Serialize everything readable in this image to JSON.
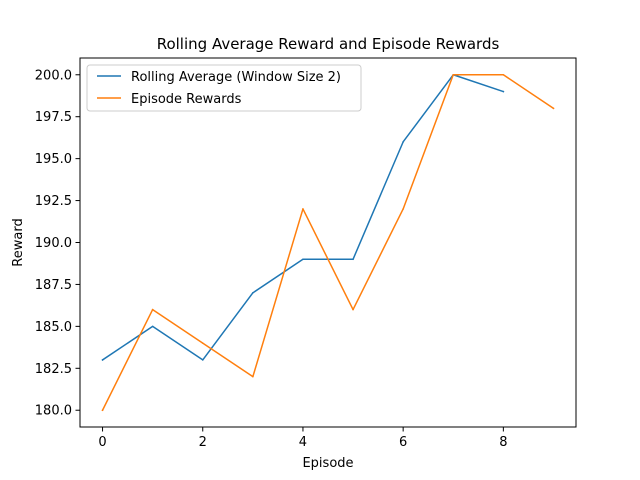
{
  "chart_data": {
    "type": "line",
    "title": "Rolling Average Reward and Episode Rewards",
    "xlabel": "Episode",
    "ylabel": "Reward",
    "xlim": [
      -0.45,
      9.45
    ],
    "ylim": [
      179.0,
      201.0
    ],
    "xticks": [
      0,
      2,
      4,
      6,
      8
    ],
    "xtick_labels": [
      "0",
      "2",
      "4",
      "6",
      "8"
    ],
    "yticks": [
      180.0,
      182.5,
      185.0,
      187.5,
      190.0,
      192.5,
      195.0,
      197.5,
      200.0
    ],
    "ytick_labels": [
      "180.0",
      "182.5",
      "185.0",
      "187.5",
      "190.0",
      "192.5",
      "195.0",
      "197.5",
      "200.0"
    ],
    "grid": false,
    "legend_position": "top-left",
    "series": [
      {
        "name": "Rolling Average (Window Size 2)",
        "color": "#1f77b4",
        "x": [
          0,
          1,
          2,
          3,
          4,
          5,
          6,
          7,
          8
        ],
        "values": [
          183,
          185,
          183,
          187,
          189,
          189,
          196,
          200,
          199
        ]
      },
      {
        "name": "Episode Rewards",
        "color": "#ff7f0e",
        "x": [
          0,
          1,
          2,
          3,
          4,
          5,
          6,
          7,
          8,
          9
        ],
        "values": [
          180,
          186,
          184,
          182,
          192,
          186,
          192,
          200,
          200,
          198
        ]
      }
    ]
  }
}
